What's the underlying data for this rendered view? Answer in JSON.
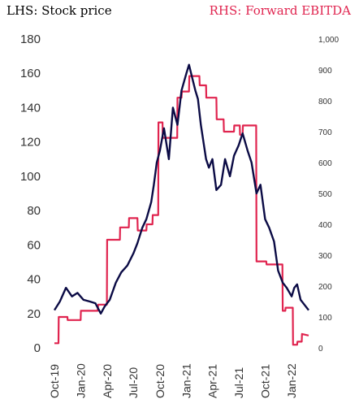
{
  "chart_data": {
    "type": "line",
    "title_left": "LHS: Stock price",
    "title_right": "RHS: Forward EBITDA",
    "colors": {
      "stock": "#0b0b45",
      "ebitda": "#e0244f",
      "text": "#333333"
    },
    "x_ticks": [
      "Oct-19",
      "Jan-20",
      "Apr-20",
      "Jul-20",
      "Oct-20",
      "Jan-21",
      "Apr-21",
      "Jul-21",
      "Oct-21",
      "Jan-22"
    ],
    "left_axis": {
      "ticks": [
        "0",
        "20",
        "40",
        "60",
        "80",
        "100",
        "120",
        "140",
        "160",
        "180"
      ],
      "ylim": [
        0,
        180
      ]
    },
    "right_axis": {
      "ticks": [
        "0",
        "100",
        "200",
        "300",
        "400",
        "500",
        "600",
        "700",
        "800",
        "900",
        "1,000"
      ],
      "ylim": [
        0,
        1000
      ]
    },
    "xlim": [
      "2019-10-01",
      "2022-03-01"
    ],
    "series": [
      {
        "name": "LHS: Stock price",
        "axis": "left",
        "x": [
          "2019-10-01",
          "2019-10-20",
          "2019-11-10",
          "2019-12-01",
          "2019-12-20",
          "2020-01-10",
          "2020-02-01",
          "2020-02-20",
          "2020-03-10",
          "2020-03-23",
          "2020-04-10",
          "2020-05-01",
          "2020-05-20",
          "2020-06-10",
          "2020-07-01",
          "2020-07-15",
          "2020-08-01",
          "2020-08-15",
          "2020-09-01",
          "2020-09-10",
          "2020-09-20",
          "2020-10-01",
          "2020-10-15",
          "2020-11-01",
          "2020-11-15",
          "2020-12-01",
          "2020-12-15",
          "2021-01-01",
          "2021-01-10",
          "2021-01-20",
          "2021-02-01",
          "2021-02-10",
          "2021-02-20",
          "2021-03-01",
          "2021-03-10",
          "2021-03-20",
          "2021-04-01",
          "2021-04-15",
          "2021-05-01",
          "2021-05-15",
          "2021-06-01",
          "2021-06-15",
          "2021-07-01",
          "2021-07-15",
          "2021-08-01",
          "2021-08-15",
          "2021-09-01",
          "2021-09-15",
          "2021-10-01",
          "2021-10-15",
          "2021-11-01",
          "2021-11-15",
          "2021-12-01",
          "2021-12-15",
          "2022-01-01",
          "2022-01-10",
          "2022-01-20",
          "2022-02-01",
          "2022-02-15",
          "2022-03-01"
        ],
        "values": [
          22,
          27,
          35,
          30,
          32,
          28,
          27,
          26,
          20,
          24,
          28,
          38,
          44,
          48,
          55,
          61,
          70,
          75,
          85,
          95,
          108,
          115,
          128,
          110,
          140,
          130,
          150,
          160,
          165,
          158,
          150,
          145,
          130,
          120,
          110,
          105,
          110,
          92,
          95,
          110,
          100,
          112,
          118,
          125,
          115,
          108,
          90,
          95,
          75,
          70,
          62,
          45,
          38,
          35,
          30,
          35,
          37,
          28,
          25,
          22
        ]
      },
      {
        "name": "RHS: Forward EBITDA",
        "axis": "right",
        "x": [
          "2019-10-01",
          "2019-10-15",
          "2019-10-16",
          "2019-11-15",
          "2019-11-16",
          "2019-12-31",
          "2020-01-01",
          "2020-02-28",
          "2020-03-01",
          "2020-03-31",
          "2020-04-01",
          "2020-05-15",
          "2020-05-16",
          "2020-06-15",
          "2020-06-16",
          "2020-07-15",
          "2020-07-16",
          "2020-08-15",
          "2020-08-16",
          "2020-09-05",
          "2020-09-06",
          "2020-09-25",
          "2020-09-26",
          "2020-10-10",
          "2020-10-11",
          "2020-11-30",
          "2020-12-01",
          "2020-12-15",
          "2020-12-16",
          "2021-01-10",
          "2021-01-11",
          "2021-02-15",
          "2021-02-16",
          "2021-03-10",
          "2021-03-11",
          "2021-04-15",
          "2021-04-16",
          "2021-05-10",
          "2021-05-11",
          "2021-06-15",
          "2021-06-16",
          "2021-07-05",
          "2021-07-06",
          "2021-07-15",
          "2021-07-16",
          "2021-08-31",
          "2021-09-01",
          "2021-10-05",
          "2021-10-06",
          "2021-11-30",
          "2021-12-01",
          "2021-12-10",
          "2021-12-11",
          "2022-01-05",
          "2022-01-06",
          "2022-01-20",
          "2022-01-21",
          "2022-02-05",
          "2022-02-06",
          "2022-03-01"
        ],
        "values": [
          15,
          15,
          100,
          100,
          90,
          90,
          120,
          120,
          140,
          140,
          350,
          350,
          390,
          390,
          420,
          420,
          380,
          380,
          400,
          400,
          430,
          430,
          730,
          730,
          680,
          680,
          810,
          810,
          830,
          830,
          880,
          880,
          850,
          850,
          810,
          810,
          740,
          740,
          700,
          700,
          720,
          720,
          690,
          690,
          720,
          720,
          280,
          280,
          270,
          270,
          120,
          120,
          130,
          130,
          10,
          10,
          20,
          20,
          45,
          40
        ]
      }
    ]
  }
}
